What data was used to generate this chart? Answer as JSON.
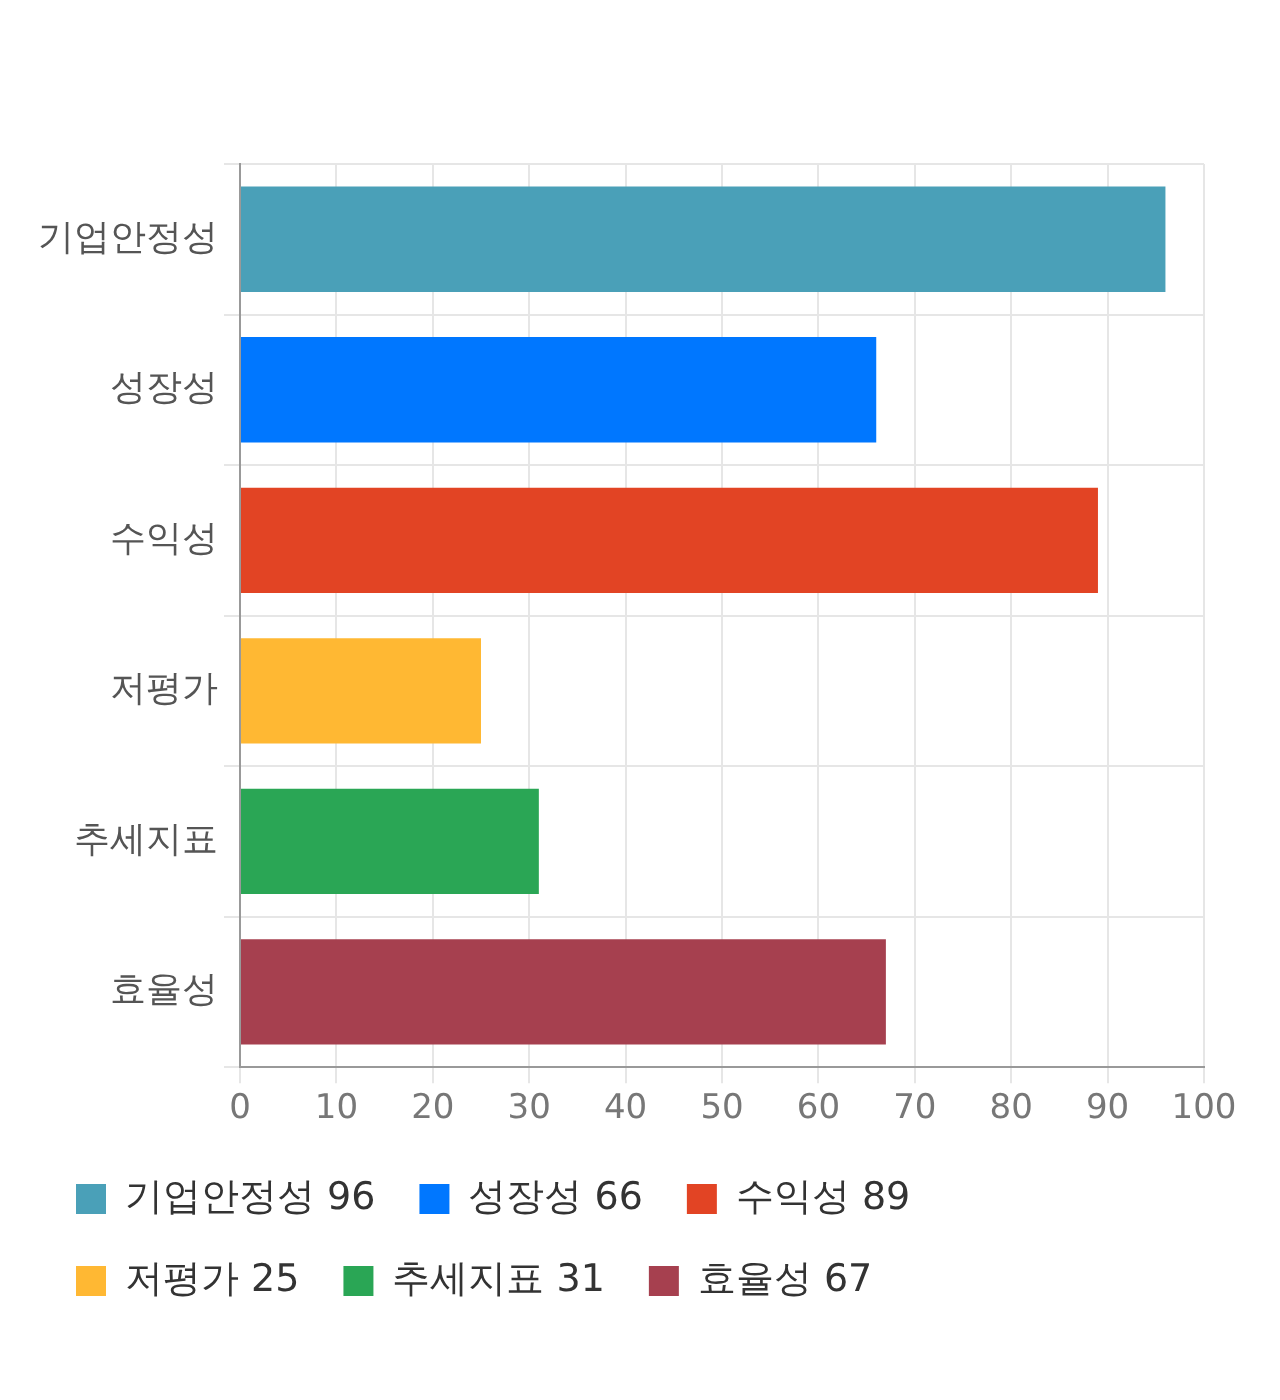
{
  "chart_data": {
    "type": "bar",
    "orientation": "horizontal",
    "categories": [
      "기업안정성",
      "성장성",
      "수익성",
      "저평가",
      "추세지표",
      "효율성"
    ],
    "series": [
      {
        "name": "기업안정성 96",
        "color": "#4aa0b8",
        "values": [
          96,
          null,
          null,
          null,
          null,
          null
        ]
      },
      {
        "name": "성장성 66",
        "color": "#0077ff",
        "values": [
          null,
          66,
          null,
          null,
          null,
          null
        ]
      },
      {
        "name": "수익성 89",
        "color": "#e24424",
        "values": [
          null,
          null,
          89,
          null,
          null,
          null
        ]
      },
      {
        "name": "저평가 25",
        "color": "#ffb833",
        "values": [
          null,
          null,
          null,
          25,
          null,
          null
        ]
      },
      {
        "name": "추세지표 31",
        "color": "#2aa655",
        "values": [
          null,
          null,
          null,
          null,
          31,
          null
        ]
      },
      {
        "name": "효율성 67",
        "color": "#a6404f",
        "values": [
          null,
          null,
          null,
          null,
          null,
          67
        ]
      }
    ],
    "xlim": [
      0,
      100
    ],
    "xticks": [
      0,
      10,
      20,
      30,
      40,
      50,
      60,
      70,
      80,
      90,
      100
    ],
    "grid": true,
    "legend": "bottom"
  }
}
